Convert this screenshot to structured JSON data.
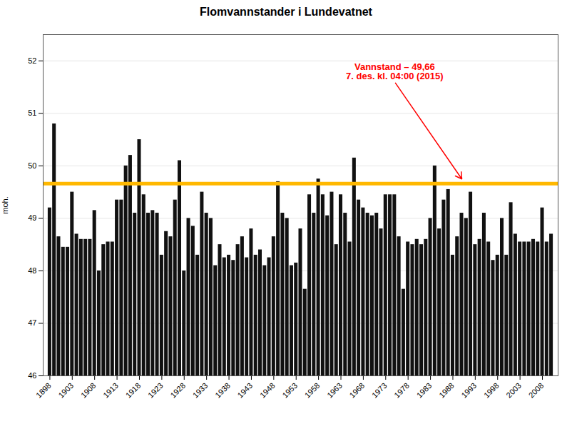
{
  "chart_data": {
    "type": "bar",
    "title": "Flomvannstander i Lundevatnet",
    "ylabel": "moh.",
    "x": [
      1898,
      1899,
      1900,
      1901,
      1902,
      1903,
      1904,
      1905,
      1906,
      1907,
      1908,
      1909,
      1910,
      1911,
      1912,
      1913,
      1914,
      1915,
      1916,
      1917,
      1918,
      1919,
      1920,
      1921,
      1922,
      1923,
      1924,
      1925,
      1926,
      1927,
      1928,
      1929,
      1930,
      1931,
      1932,
      1933,
      1934,
      1935,
      1936,
      1937,
      1938,
      1939,
      1940,
      1941,
      1942,
      1943,
      1944,
      1945,
      1946,
      1947,
      1948,
      1949,
      1950,
      1951,
      1952,
      1953,
      1954,
      1955,
      1956,
      1957,
      1958,
      1959,
      1960,
      1961,
      1962,
      1963,
      1964,
      1965,
      1966,
      1967,
      1968,
      1969,
      1970,
      1971,
      1972,
      1973,
      1974,
      1975,
      1976,
      1977,
      1978,
      1979,
      1980,
      1981,
      1982,
      1983,
      1984,
      1985,
      1986,
      1987,
      1988,
      1989,
      1990,
      1991,
      1992,
      1993,
      1994,
      1995,
      1996,
      1997,
      1998,
      1999,
      2000,
      2001,
      2002,
      2003,
      2004,
      2005,
      2006,
      2007,
      2008,
      2009,
      2010
    ],
    "values": [
      49.2,
      50.8,
      48.65,
      48.45,
      48.45,
      49.5,
      48.7,
      48.6,
      48.6,
      48.6,
      49.15,
      48.0,
      48.5,
      48.55,
      48.55,
      49.35,
      49.35,
      50.0,
      50.2,
      49.1,
      50.5,
      49.45,
      49.1,
      49.15,
      49.1,
      48.3,
      48.75,
      48.65,
      49.35,
      50.1,
      48.0,
      49.0,
      48.85,
      48.3,
      49.5,
      49.1,
      49.0,
      48.1,
      48.5,
      48.25,
      48.3,
      48.2,
      48.5,
      48.65,
      48.25,
      48.8,
      48.3,
      48.4,
      48.1,
      48.25,
      48.65,
      49.7,
      49.1,
      49.0,
      48.1,
      48.15,
      48.8,
      47.65,
      49.45,
      49.1,
      49.75,
      49.45,
      49.05,
      49.5,
      48.5,
      49.45,
      49.1,
      48.55,
      50.15,
      49.35,
      49.2,
      49.1,
      49.05,
      49.1,
      48.8,
      49.45,
      49.45,
      49.45,
      48.65,
      47.65,
      48.55,
      48.5,
      48.6,
      48.5,
      48.6,
      49.0,
      50.0,
      48.8,
      49.35,
      49.55,
      48.3,
      48.65,
      49.1,
      49.0,
      49.5,
      48.5,
      48.6,
      49.1,
      48.55,
      48.2,
      48.3,
      49.0,
      48.3,
      49.3,
      48.7,
      48.55,
      48.55,
      48.55,
      48.6,
      48.55,
      49.2,
      48.55,
      48.7
    ],
    "color": "#111111",
    "xlim": [
      1896.5,
      2011.5
    ],
    "xticks": [
      1898,
      1903,
      1908,
      1913,
      1918,
      1923,
      1928,
      1933,
      1938,
      1943,
      1948,
      1953,
      1958,
      1963,
      1968,
      1973,
      1978,
      1983,
      1988,
      1993,
      1998,
      2003,
      2008
    ],
    "ylim": [
      46,
      52.5
    ],
    "yticks": [
      46,
      47,
      48,
      49,
      50,
      51,
      52
    ],
    "grid": true,
    "hline": {
      "value": 49.66,
      "color": "#FFB800"
    },
    "annotation": {
      "text": "Vannstand – 49,66\n7. des. kl. 04:00 (2015)",
      "color": "red",
      "x": 1975,
      "y": 51.6,
      "arrow_x": 1990,
      "arrow_y": 49.75
    }
  }
}
